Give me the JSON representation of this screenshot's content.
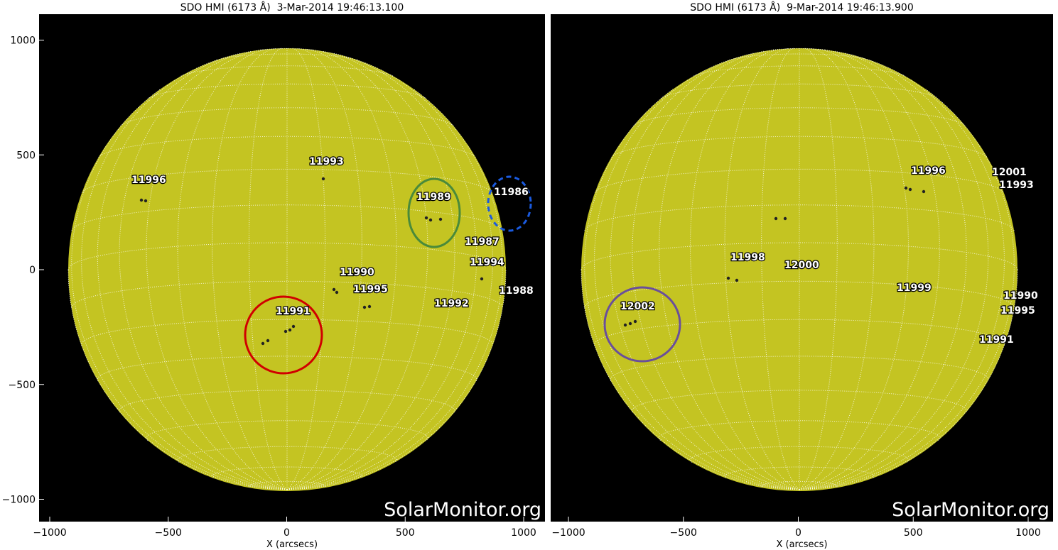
{
  "panels": [
    {
      "title": "SDO HMI (6173 Å)  3-Mar-2014 19:46:13.100",
      "xlabel": "X (arcsecs)",
      "xticks": [
        {
          "value": -1000,
          "label": "−1000"
        },
        {
          "value": -500,
          "label": "−500"
        },
        0,
        500,
        1000
      ],
      "yticks": [
        {
          "value": -1000,
          "label": "−1000"
        },
        {
          "value": -500,
          "label": "−500"
        },
        0,
        500,
        1000
      ],
      "regions": [
        "11996",
        "11993",
        "11989",
        "11986",
        "11987",
        "11994",
        "11990",
        "11995",
        "11988",
        "11992",
        "11991"
      ],
      "watermark": "SolarMonitor.org"
    },
    {
      "title": "SDO HMI (6173 Å)  9-Mar-2014 19:46:13.900",
      "xlabel": "X (arcsecs)",
      "xticks": [
        {
          "value": -1000,
          "label": "−1000"
        },
        {
          "value": -500,
          "label": "−500"
        },
        0,
        500,
        1000
      ],
      "regions": [
        "11996",
        "12001",
        "11993",
        "11998",
        "12000",
        "11999",
        "11990",
        "11995",
        "12002",
        "11991"
      ],
      "watermark": "SolarMonitor.org"
    }
  ]
}
